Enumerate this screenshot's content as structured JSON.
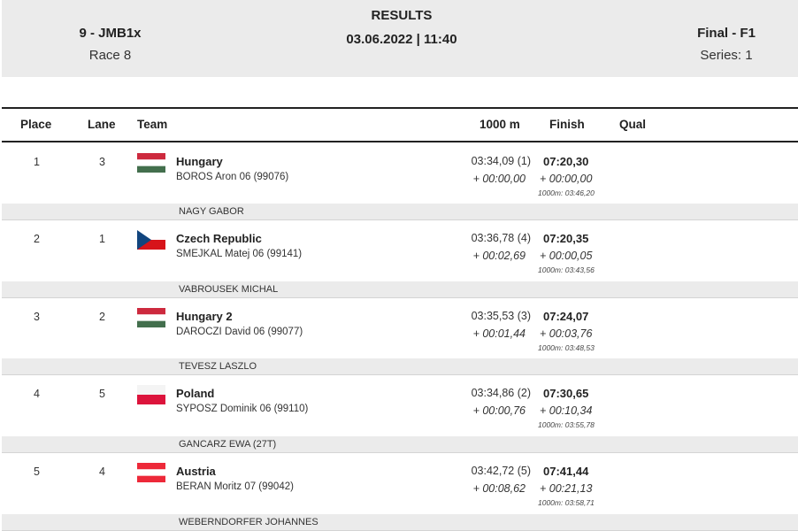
{
  "header": {
    "event": "9 - JMB1x",
    "race": "Race 8",
    "title": "RESULTS",
    "datetime": "03.06.2022 | 11:40",
    "phase": "Final - F1",
    "series": "Series: 1"
  },
  "columns": {
    "place": "Place",
    "lane": "Lane",
    "team": "Team",
    "split": "1000 m",
    "finish": "Finish",
    "qual": "Qual"
  },
  "rows": [
    {
      "place": "1",
      "lane": "3",
      "flag": "hungary-flag-icon",
      "team": "Hungary",
      "crew": "BOROS  Aron 06 (99076)",
      "split": "03:34,09 (1)",
      "split_diff": "+ 00:00,00",
      "finish": "07:20,30",
      "finish_diff": "+ 00:00,00",
      "finish_note": "1000m: 03:46,20",
      "coach": "NAGY GABOR"
    },
    {
      "place": "2",
      "lane": "1",
      "flag": "czech-flag-icon",
      "team": "Czech Republic",
      "crew": "SMEJKAL  Matej 06 (99141)",
      "split": "03:36,78 (4)",
      "split_diff": "+ 00:02,69",
      "finish": "07:20,35",
      "finish_diff": "+ 00:00,05",
      "finish_note": "1000m: 03:43,56",
      "coach": "VABROUSEK MICHAL"
    },
    {
      "place": "3",
      "lane": "2",
      "flag": "hungary-flag-icon",
      "team": "Hungary 2",
      "crew": "DAROCZI  David 06 (99077)",
      "split": "03:35,53 (3)",
      "split_diff": "+ 00:01,44",
      "finish": "07:24,07",
      "finish_diff": "+ 00:03,76",
      "finish_note": "1000m: 03:48,53",
      "coach": "TEVESZ LASZLO"
    },
    {
      "place": "4",
      "lane": "5",
      "flag": "poland-flag-icon",
      "team": "Poland",
      "crew": "SYPOSZ  Dominik 06 (99110)",
      "split": "03:34,86 (2)",
      "split_diff": "+ 00:00,76",
      "finish": "07:30,65",
      "finish_diff": "+ 00:10,34",
      "finish_note": "1000m: 03:55,78",
      "coach": "GANCARZ EWA (27T)"
    },
    {
      "place": "5",
      "lane": "4",
      "flag": "austria-flag-icon",
      "team": "Austria",
      "crew": "BERAN  Moritz 07 (99042)",
      "split": "03:42,72 (5)",
      "split_diff": "+ 00:08,62",
      "finish": "07:41,44",
      "finish_diff": "+ 00:21,13",
      "finish_note": "1000m: 03:58,71",
      "coach": "WEBERNDORFER JOHANNES"
    }
  ],
  "colors": {
    "header_bg": "#ebebeb",
    "coach_bg": "#ebebeb",
    "rule": "#222222"
  }
}
